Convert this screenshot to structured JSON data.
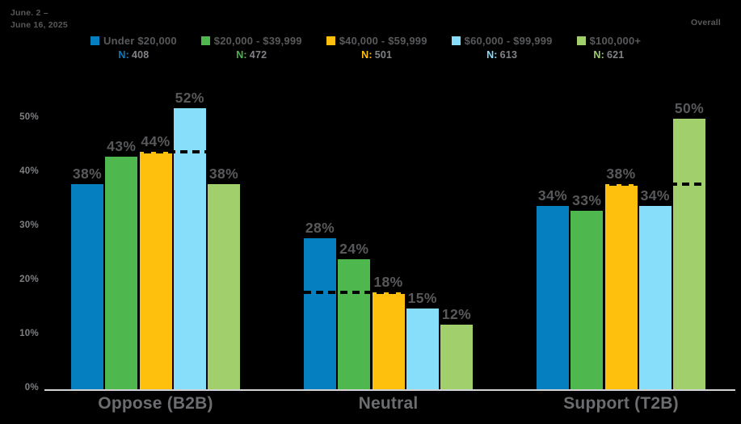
{
  "header": {
    "date_line1": "June. 2 –",
    "date_line2": "June 16, 2025",
    "overall_label": "Overall"
  },
  "legend": {
    "n_prefix": "N:",
    "entries": [
      {
        "label": "Under $20,000",
        "n": "408",
        "color": "#067fc1"
      },
      {
        "label": "$20,000 - $39,999",
        "n": "472",
        "color": "#4eb74d"
      },
      {
        "label": "$40,000 - $59,999",
        "n": "501",
        "color": "#fec00d"
      },
      {
        "label": "$60,000 - $99,999",
        "n": "613",
        "color": "#86defb"
      },
      {
        "label": "$100,000+",
        "n": "621",
        "color": "#a1cf6b"
      }
    ]
  },
  "chart_data": {
    "type": "bar",
    "title": "",
    "categories": [
      "Oppose (B2B)",
      "Neutral",
      "Support (T2B)"
    ],
    "series": [
      {
        "name": "Under $20,000",
        "n": 408,
        "color": "#067fc1",
        "values": [
          38,
          28,
          34
        ]
      },
      {
        "name": "$20,000 - $39,999",
        "n": 472,
        "color": "#4eb74d",
        "values": [
          43,
          24,
          33
        ]
      },
      {
        "name": "$40,000 - $59,999",
        "n": 501,
        "color": "#fec00d",
        "values": [
          44,
          18,
          38
        ]
      },
      {
        "name": "$60,000 - $99,999",
        "n": 613,
        "color": "#86defb",
        "values": [
          52,
          15,
          34
        ]
      },
      {
        "name": "$100,000+",
        "n": 621,
        "color": "#a1cf6b",
        "values": [
          38,
          12,
          50
        ]
      }
    ],
    "overall_line": {
      "label": "Overall",
      "values": [
        44,
        18,
        38
      ],
      "style": "dashed",
      "color": "#000000"
    },
    "value_suffix": "%",
    "xlabel": "",
    "ylabel": "",
    "ylim": [
      0,
      55
    ],
    "y_ticks": [
      0,
      10,
      20,
      30,
      40,
      50
    ],
    "y_tick_suffix": "%",
    "grid": false,
    "legend_position": "top",
    "axis_color": "#d1d3d4",
    "label_color": "#58595b"
  }
}
